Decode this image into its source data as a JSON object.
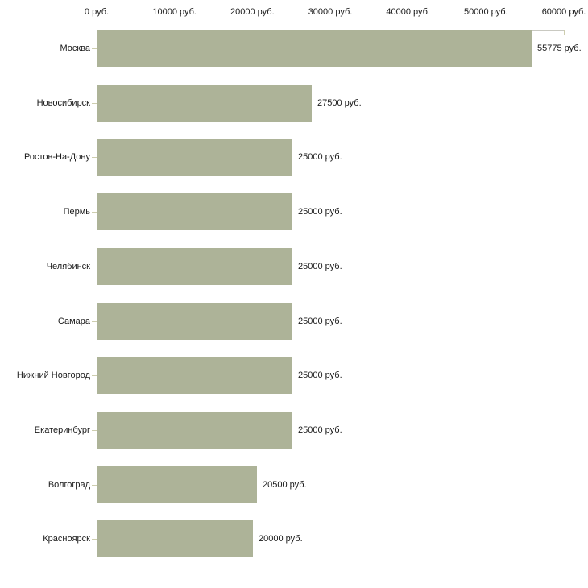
{
  "chart_data": {
    "type": "bar",
    "orientation": "horizontal",
    "title": "",
    "xlabel": "",
    "ylabel": "",
    "categories": [
      "Москва",
      "Новосибирск",
      "Ростов-На-Дону",
      "Пермь",
      "Челябинск",
      "Самара",
      "Нижний Новгород",
      "Екатеринбург",
      "Волгоград",
      "Красноярск"
    ],
    "values": [
      55775,
      27500,
      25000,
      25000,
      25000,
      25000,
      25000,
      25000,
      20500,
      20000
    ],
    "value_labels": [
      "55775 руб.",
      "27500 руб.",
      "25000 руб.",
      "25000 руб.",
      "25000 руб.",
      "25000 руб.",
      "25000 руб.",
      "25000 руб.",
      "20500 руб.",
      "20000 руб."
    ],
    "xlim": [
      0,
      60000
    ],
    "x_ticks": [
      0,
      10000,
      20000,
      30000,
      40000,
      50000,
      60000
    ],
    "x_tick_labels": [
      "0 руб.",
      "10000 руб.",
      "20000 руб.",
      "30000 руб.",
      "40000 руб.",
      "50000 руб.",
      "60000 руб."
    ],
    "grid": false,
    "legend": "none",
    "colors": {
      "bar": "#adb398",
      "axis_line": "#c9c9c1",
      "tick_mark": "#cdcdae",
      "text": "#1a1a1a",
      "background": "#ffffff"
    }
  }
}
